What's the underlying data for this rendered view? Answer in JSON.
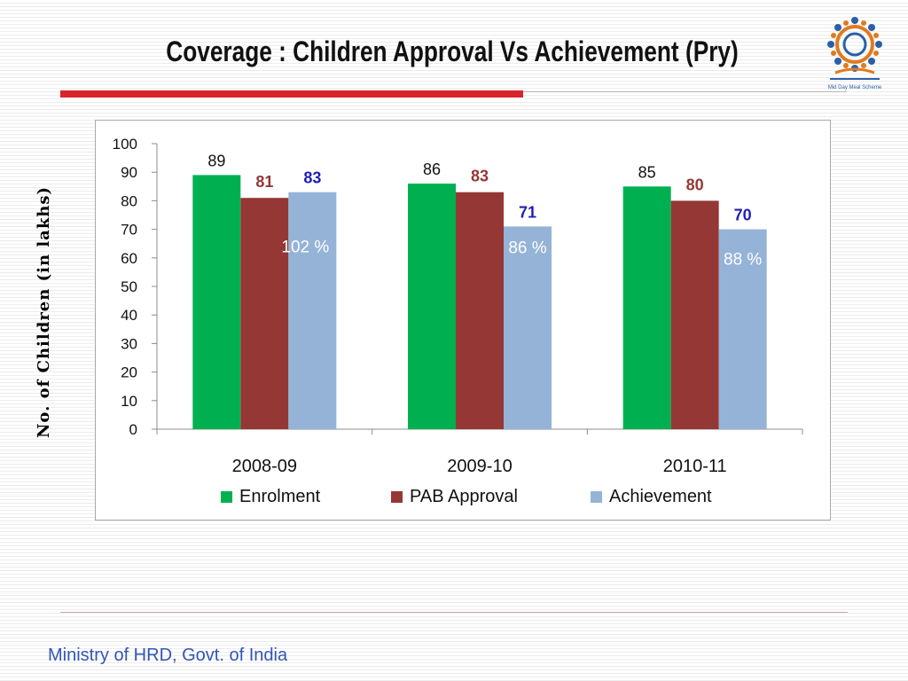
{
  "slide": {
    "title": "Coverage : Children Approval Vs Achievement (Pry)",
    "footer": "Ministry of HRD, Govt. of India",
    "logo_caption": "Mid Day Meal Scheme"
  },
  "chart_data": {
    "type": "bar",
    "title": "Coverage : Children Approval Vs Achievement (Pry)",
    "xlabel": "",
    "ylabel": "No. of Children (in lakhs)",
    "ylim": [
      0,
      100
    ],
    "yticks": [
      0,
      10,
      20,
      30,
      40,
      50,
      60,
      70,
      80,
      90,
      100
    ],
    "categories": [
      "2008-09",
      "2009-10",
      "2010-11"
    ],
    "series": [
      {
        "name": "Enrolment",
        "values": [
          89,
          86,
          85
        ],
        "color": "#00b050",
        "label_color": "#111111"
      },
      {
        "name": "PAB Approval",
        "values": [
          81,
          83,
          80
        ],
        "color": "#953735",
        "label_color": "#953735"
      },
      {
        "name": "Achievement",
        "values": [
          83,
          71,
          70
        ],
        "color": "#95b3d7",
        "label_color": "#1f1fb4"
      }
    ],
    "annotations": [
      "102 %",
      "86 %",
      "88 %"
    ],
    "grid": false,
    "legend_position": "bottom"
  }
}
